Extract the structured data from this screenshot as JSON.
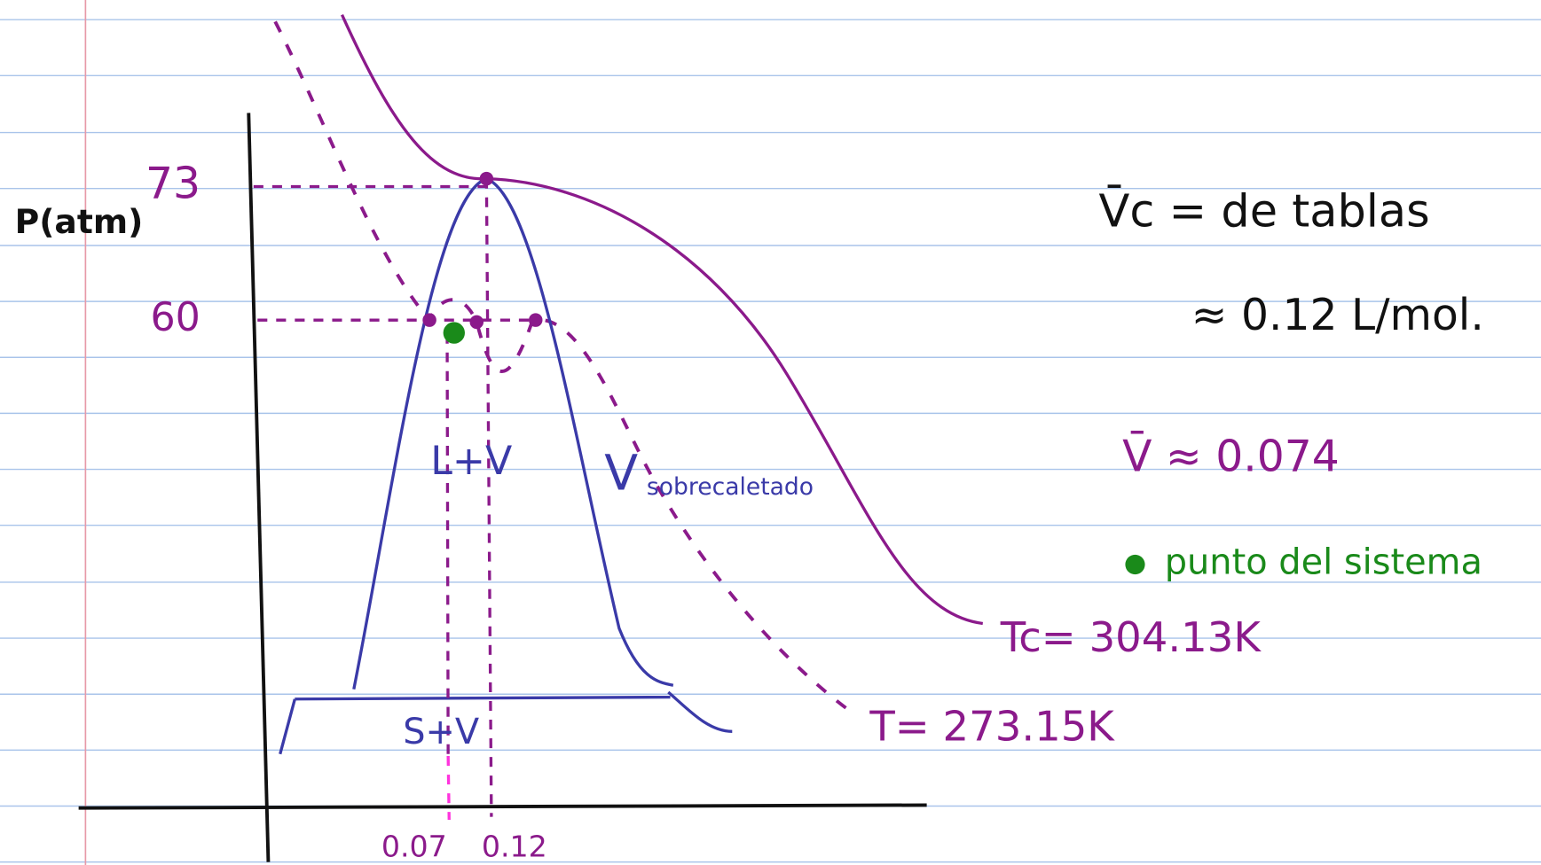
{
  "axes": {
    "y_label": "P(atm)",
    "y_ticks": [
      "73",
      "60"
    ],
    "x_ticks": [
      "0.07",
      "0.12"
    ]
  },
  "regions": {
    "two_phase": "L+V",
    "superheated_main": "V",
    "superheated_sub": "sobrecaletado",
    "solid_vapor": "S+V"
  },
  "isotherms": {
    "critical": "Tc= 304.13K",
    "system": "T= 273.15K"
  },
  "notes": {
    "vc_line1": "V̄c = de tablas",
    "vc_line2": "≈ 0.12 L/mol.",
    "v_value": "V̄ ≈ 0.074",
    "legend": "punto del sistema"
  }
}
